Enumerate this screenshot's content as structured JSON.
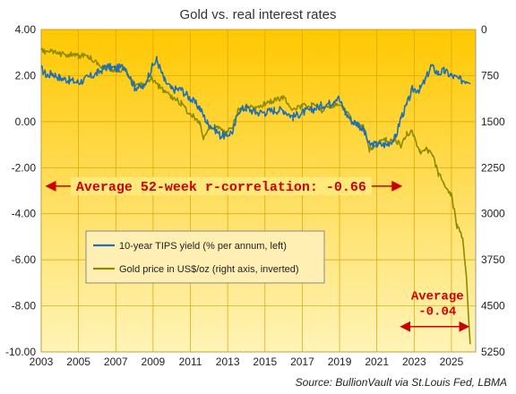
{
  "chart_data": {
    "type": "line",
    "title": "Gold vs. real interest rates",
    "xlim": [
      2003,
      2026.3
    ],
    "x_ticks": [
      "2003",
      "2005",
      "2007",
      "2009",
      "2011",
      "2013",
      "2015",
      "2017",
      "2019",
      "2021",
      "2023",
      "2025"
    ],
    "ylim_left": [
      -10,
      4
    ],
    "y_ticks_left": [
      "4.00",
      "2.00",
      "0.00",
      "-2.00",
      "-4.00",
      "-6.00",
      "-8.00",
      "-10.00"
    ],
    "ylim_right": [
      0,
      5250
    ],
    "right_axis_inverted": true,
    "y_ticks_right": [
      "0",
      "750",
      "1500",
      "2250",
      "3000",
      "3750",
      "4500",
      "5250"
    ],
    "background": "yellow-to-orange gradient",
    "grid": true,
    "legend_position": "center-left",
    "series": [
      {
        "name": "10-year TIPS yield (% per annum, left)",
        "axis": "left",
        "color": "#1f6fb8",
        "x": [
          2003.0,
          2003.3,
          2003.6,
          2004.0,
          2004.5,
          2005.0,
          2005.5,
          2006.0,
          2006.5,
          2007.0,
          2007.5,
          2008.0,
          2008.5,
          2008.9,
          2009.2,
          2009.6,
          2010.0,
          2010.5,
          2011.0,
          2011.5,
          2011.9,
          2012.3,
          2012.6,
          2012.9,
          2013.3,
          2013.6,
          2014.0,
          2014.5,
          2015.0,
          2015.5,
          2016.0,
          2016.5,
          2017.0,
          2017.5,
          2018.0,
          2018.5,
          2018.9,
          2019.3,
          2019.7,
          2020.0,
          2020.3,
          2020.6,
          2021.0,
          2021.5,
          2022.0,
          2022.3,
          2022.6,
          2022.9,
          2023.3,
          2023.6,
          2023.9,
          2024.3,
          2024.6,
          2025.0,
          2025.5,
          2026.0
        ],
        "y": [
          2.3,
          2.0,
          2.1,
          1.9,
          1.8,
          1.7,
          1.9,
          2.1,
          2.4,
          2.3,
          2.4,
          1.5,
          1.5,
          2.3,
          2.7,
          1.8,
          1.4,
          1.4,
          1.0,
          0.6,
          -0.05,
          -0.3,
          -0.6,
          -0.6,
          -0.4,
          0.5,
          0.6,
          0.4,
          0.4,
          0.5,
          0.5,
          0.2,
          0.4,
          0.5,
          0.7,
          0.8,
          1.1,
          0.4,
          0.0,
          -0.1,
          -0.4,
          -1.0,
          -1.0,
          -1.0,
          -0.7,
          0.2,
          0.7,
          1.4,
          1.4,
          1.8,
          2.4,
          2.1,
          2.2,
          2.0,
          1.8,
          1.8
        ]
      },
      {
        "name": "Gold price in US$/oz (right axis, inverted)",
        "axis": "right",
        "color": "#8b8a00",
        "x": [
          2003.0,
          2003.5,
          2004.0,
          2004.5,
          2005.0,
          2005.5,
          2006.0,
          2006.5,
          2007.0,
          2007.5,
          2008.0,
          2008.5,
          2008.9,
          2009.3,
          2009.6,
          2010.0,
          2010.5,
          2011.0,
          2011.5,
          2011.7,
          2012.0,
          2012.5,
          2012.9,
          2013.3,
          2013.6,
          2014.0,
          2014.5,
          2015.0,
          2015.5,
          2016.0,
          2016.5,
          2017.0,
          2017.5,
          2018.0,
          2018.5,
          2018.9,
          2019.3,
          2019.7,
          2020.0,
          2020.3,
          2020.6,
          2021.0,
          2021.5,
          2022.0,
          2022.3,
          2022.6,
          2022.9,
          2023.3,
          2023.6,
          2024.0,
          2024.3,
          2024.6,
          2025.0,
          2025.3,
          2025.6,
          2025.8,
          2026.0
        ],
        "y": [
          350,
          360,
          400,
          405,
          430,
          430,
          550,
          630,
          650,
          670,
          900,
          900,
          800,
          920,
          1000,
          1100,
          1200,
          1380,
          1500,
          1780,
          1600,
          1600,
          1700,
          1550,
          1300,
          1250,
          1300,
          1200,
          1150,
          1100,
          1300,
          1250,
          1230,
          1320,
          1250,
          1200,
          1300,
          1500,
          1550,
          1600,
          1950,
          1850,
          1800,
          1800,
          1900,
          1700,
          1650,
          2000,
          1950,
          2050,
          2350,
          2500,
          2700,
          3200,
          3400,
          4000,
          5150
        ]
      }
    ],
    "annotations": [
      {
        "text": "Average 52-week r-correlation: -0.66",
        "x_from": 2003,
        "x_to": 2022.3,
        "y": -2.8
      },
      {
        "text_line1": "Average",
        "text_line2": "-0.04",
        "x_from": 2022.3,
        "x_to": 2026.0,
        "y": -8.9
      }
    ],
    "source": "Source: BullionVault via St.Louis Fed, LBMA"
  }
}
